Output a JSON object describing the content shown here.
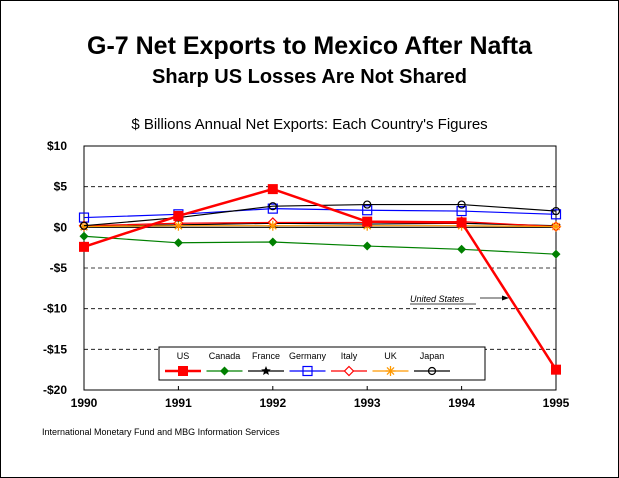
{
  "title": "G-7 Net Exports to Mexico After Nafta",
  "subtitle": "Sharp US Losses Are Not Shared",
  "ylabel": "$ Billions Annual Net Exports: Each Country's Figures",
  "source": "International Monetary Fund and MBG Information Services",
  "chart_data": {
    "type": "line",
    "title": "G-7 Net Exports to Mexico After Nafta",
    "subtitle": "Sharp US Losses Are Not Shared",
    "ylabel": "$ Billions Annual Net Exports: Each Country's Figures",
    "xlabel": "",
    "categories": [
      "1990",
      "1991",
      "1992",
      "1993",
      "1994",
      "1995"
    ],
    "ylim": [
      -20,
      10
    ],
    "yticks": [
      10,
      5,
      0,
      -5,
      -10,
      -15,
      -20
    ],
    "ytick_labels": [
      "$10",
      "$5",
      "$0",
      "-$5",
      "-$10",
      "-$15",
      "-$20"
    ],
    "grid": "horizontal dashed",
    "legend_position": "bottom-center",
    "series": [
      {
        "name": "US",
        "color": "#ff0000",
        "marker": "filled-square",
        "values": [
          -2.4,
          1.4,
          4.7,
          0.7,
          0.6,
          -17.5
        ]
      },
      {
        "name": "Canada",
        "color": "#008000",
        "marker": "filled-diamond",
        "values": [
          -1.1,
          -1.9,
          -1.8,
          -2.3,
          -2.7,
          -3.3
        ]
      },
      {
        "name": "France",
        "color": "#000000",
        "marker": "star",
        "values": [
          0.1,
          0.3,
          0.5,
          0.4,
          0.5,
          0.2
        ]
      },
      {
        "name": "Germany",
        "color": "#0000ff",
        "marker": "open-square",
        "values": [
          1.2,
          1.6,
          2.3,
          2.1,
          2.0,
          1.6
        ]
      },
      {
        "name": "Italy",
        "color": "#ff0000",
        "marker": "open-diamond",
        "values": [
          0.2,
          0.5,
          0.6,
          0.6,
          0.7,
          0.1
        ]
      },
      {
        "name": "UK",
        "color": "#ff9900",
        "marker": "asterisk",
        "values": [
          0.1,
          0.2,
          0.2,
          0.2,
          0.2,
          0.1
        ]
      },
      {
        "name": "Japan",
        "color": "#000000",
        "marker": "open-circle",
        "values": [
          0.2,
          1.2,
          2.6,
          2.8,
          2.8,
          2.0
        ]
      }
    ],
    "annotations": [
      {
        "text": "United States",
        "points_to": "US"
      }
    ]
  }
}
